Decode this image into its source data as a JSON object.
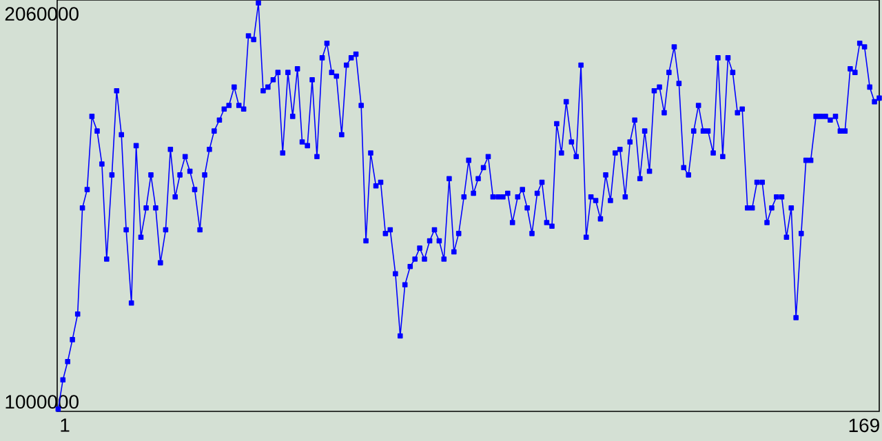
{
  "chart_data": {
    "type": "line",
    "x": [
      -0.4,
      0.6,
      1.6,
      2.6,
      3.7,
      4.7,
      5.7,
      6.7,
      7.8,
      8.8,
      9.8,
      10.9,
      11.9,
      12.9,
      13.9,
      15.0,
      16.0,
      17.0,
      18.1,
      19.1,
      20.1,
      21.1,
      22.2,
      23.2,
      24.2,
      25.2,
      26.3,
      27.3,
      28.3,
      29.4,
      30.4,
      31.4,
      32.4,
      33.5,
      34.5,
      35.5,
      36.6,
      37.6,
      38.6,
      39.6,
      40.7,
      41.7,
      42.7,
      43.7,
      44.8,
      45.8,
      46.8,
      47.9,
      48.9,
      49.9,
      50.9,
      52.0,
      53.0,
      54.0,
      55.1,
      56.1,
      57.1,
      58.1,
      59.2,
      60.2,
      61.2,
      62.2,
      63.3,
      64.3,
      65.3,
      66.4,
      67.4,
      68.4,
      69.4,
      70.5,
      71.5,
      72.5,
      73.6,
      74.6,
      75.6,
      76.6,
      77.7,
      78.7,
      79.7,
      80.7,
      81.8,
      82.8,
      83.8,
      84.9,
      85.9,
      86.9,
      87.9,
      89.0,
      90.0,
      91.0,
      92.1,
      93.1,
      94.1,
      95.1,
      96.2,
      97.2,
      98.2,
      99.2,
      100.3,
      101.3,
      102.3,
      103.4,
      104.4,
      105.4,
      106.4,
      107.5,
      108.5,
      109.5,
      110.6,
      111.6,
      112.6,
      113.6,
      114.7,
      115.7,
      116.7,
      117.7,
      118.8,
      119.8,
      120.8,
      121.9,
      122.9,
      123.9,
      124.9,
      126.0,
      127.0,
      128.0,
      129.1,
      130.1,
      131.1,
      132.1,
      133.2,
      134.2,
      135.2,
      136.2,
      137.3,
      138.3,
      139.3,
      140.4,
      141.4,
      142.4,
      143.4,
      144.5,
      145.5,
      146.5,
      147.6,
      148.6,
      149.6,
      150.6,
      151.7,
      152.7,
      153.7,
      154.7,
      155.8,
      156.8,
      157.8,
      158.9,
      159.9,
      160.9,
      161.9,
      163.0,
      164.0,
      165.0,
      166.1,
      167.1,
      168.1,
      169.1,
      170.2,
      171.2,
      172.2
    ],
    "series": [
      {
        "color": "#0000ff",
        "values": [
          980000,
          1060000,
          1110000,
          1170000,
          1240000,
          1530000,
          1580000,
          1780000,
          1740000,
          1650000,
          1390000,
          1620000,
          1850000,
          1730000,
          1470000,
          1270000,
          1700000,
          1450000,
          1530000,
          1620000,
          1530000,
          1380000,
          1470000,
          1690000,
          1560000,
          1620000,
          1670000,
          1630000,
          1580000,
          1470000,
          1620000,
          1690000,
          1740000,
          1770000,
          1800000,
          1810000,
          1860000,
          1810000,
          1800000,
          2000000,
          1990000,
          2090000,
          1850000,
          1860000,
          1880000,
          1900000,
          1680000,
          1900000,
          1780000,
          1910000,
          1710000,
          1700000,
          1880000,
          1670000,
          1940000,
          1980000,
          1900000,
          1890000,
          1730000,
          1920000,
          1940000,
          1950000,
          1810000,
          1440000,
          1680000,
          1590000,
          1600000,
          1460000,
          1470000,
          1350000,
          1180000,
          1320000,
          1370000,
          1390000,
          1420000,
          1390000,
          1440000,
          1470000,
          1440000,
          1390000,
          1610000,
          1410000,
          1460000,
          1560000,
          1660000,
          1570000,
          1610000,
          1640000,
          1670000,
          1560000,
          1560000,
          1560000,
          1570000,
          1490000,
          1560000,
          1580000,
          1530000,
          1460000,
          1570000,
          1600000,
          1490000,
          1480000,
          1760000,
          1680000,
          1820000,
          1710000,
          1670000,
          1920000,
          1450000,
          1560000,
          1550000,
          1500000,
          1620000,
          1550000,
          1680000,
          1690000,
          1560000,
          1710000,
          1770000,
          1610000,
          1740000,
          1630000,
          1850000,
          1860000,
          1790000,
          1900000,
          1970000,
          1870000,
          1640000,
          1620000,
          1740000,
          1810000,
          1740000,
          1740000,
          1680000,
          1940000,
          1670000,
          1940000,
          1900000,
          1790000,
          1800000,
          1530000,
          1530000,
          1600000,
          1600000,
          1490000,
          1530000,
          1560000,
          1560000,
          1450000,
          1530000,
          1230000,
          1460000,
          1660000,
          1660000,
          1780000,
          1780000,
          1780000,
          1770000,
          1780000,
          1740000,
          1740000,
          1910000,
          1900000,
          1980000,
          1970000,
          1860000,
          1820000,
          1830000
        ]
      }
    ],
    "xlim": [
      -0.6,
      172.2
    ],
    "ylim": [
      974000,
      2098000
    ],
    "xticks": [
      1,
      169
    ],
    "yticks": [
      1000000,
      2060000
    ],
    "marker": "square"
  }
}
